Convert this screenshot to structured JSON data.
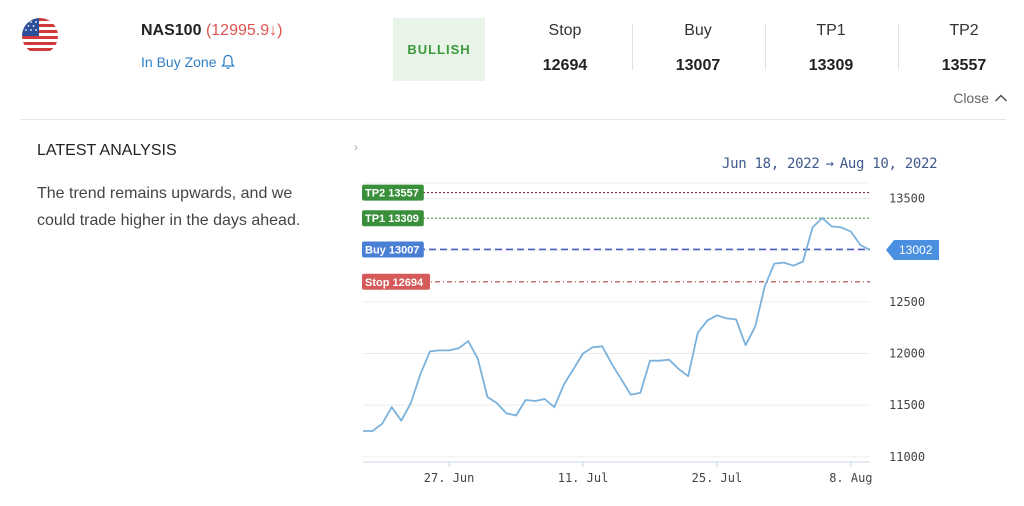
{
  "header": {
    "flag_icon": "us-flag-icon",
    "symbol": "NAS100",
    "price_open": "(",
    "price": "12995.9",
    "price_arrow": "↓",
    "price_close": ")",
    "zone": "In Buy Zone",
    "bias": "BULLISH",
    "levels": [
      {
        "label": "Stop",
        "value": "12694"
      },
      {
        "label": "Buy",
        "value": "13007"
      },
      {
        "label": "TP1",
        "value": "13309"
      },
      {
        "label": "TP2",
        "value": "13557"
      }
    ],
    "close_label": "Close"
  },
  "analysis": {
    "title": "LATEST ANALYSIS",
    "text": "The trend remains upwards, and we could trade higher in the days ahead."
  },
  "date_range": {
    "from": "Jun 18, 2022",
    "arrow": "→",
    "to": "Aug 10, 2022"
  },
  "colors": {
    "tp2": "#3a8f3a",
    "tp1": "#3a8f3a",
    "buy": "#4a7fd6",
    "stop": "#d65a5a",
    "tp2_line": "#8a2a5a",
    "tp1_line": "#4a9a4a",
    "buy_line": "#4a5fbf",
    "stop_line": "#b04040",
    "price_line": "#7ab2dd",
    "current_badge": "#4a8fe0"
  },
  "chart_data": {
    "type": "line",
    "x_start": "2022-06-18",
    "x_end": "2022-08-10",
    "x_ticks": [
      {
        "date": "2022-06-27",
        "label": "27. Jun"
      },
      {
        "date": "2022-07-11",
        "label": "11. Jul"
      },
      {
        "date": "2022-07-25",
        "label": "25. Jul"
      },
      {
        "date": "2022-08-08",
        "label": "8. Aug"
      }
    ],
    "y_ticks": [
      11000,
      11500,
      12000,
      12500,
      13000,
      13500
    ],
    "ylim": [
      10950,
      13650
    ],
    "levels": [
      {
        "name": "TP2",
        "label": "TP2 13557",
        "value": 13557
      },
      {
        "name": "TP1",
        "label": "TP1 13309",
        "value": 13309
      },
      {
        "name": "Buy",
        "label": "Buy 13007",
        "value": 13007
      },
      {
        "name": "Stop",
        "label": "Stop 12694",
        "value": 12694
      }
    ],
    "current": {
      "label": "13002",
      "value": 13002
    },
    "series": [
      {
        "values": [
          [
            "2022-06-18",
            11250
          ],
          [
            "2022-06-19",
            11250
          ],
          [
            "2022-06-20",
            11320
          ],
          [
            "2022-06-21",
            11480
          ],
          [
            "2022-06-22",
            11350
          ],
          [
            "2022-06-23",
            11520
          ],
          [
            "2022-06-24",
            11800
          ],
          [
            "2022-06-25",
            12020
          ],
          [
            "2022-06-26",
            12030
          ],
          [
            "2022-06-27",
            12030
          ],
          [
            "2022-06-28",
            12050
          ],
          [
            "2022-06-29",
            12120
          ],
          [
            "2022-06-30",
            11950
          ],
          [
            "2022-07-01",
            11580
          ],
          [
            "2022-07-02",
            11520
          ],
          [
            "2022-07-03",
            11420
          ],
          [
            "2022-07-04",
            11400
          ],
          [
            "2022-07-05",
            11550
          ],
          [
            "2022-07-06",
            11540
          ],
          [
            "2022-07-07",
            11560
          ],
          [
            "2022-07-08",
            11480
          ],
          [
            "2022-07-09",
            11700
          ],
          [
            "2022-07-10",
            11850
          ],
          [
            "2022-07-11",
            12000
          ],
          [
            "2022-07-12",
            12060
          ],
          [
            "2022-07-13",
            12070
          ],
          [
            "2022-07-14",
            11900
          ],
          [
            "2022-07-15",
            11750
          ],
          [
            "2022-07-16",
            11600
          ],
          [
            "2022-07-17",
            11620
          ],
          [
            "2022-07-18",
            11930
          ],
          [
            "2022-07-19",
            11930
          ],
          [
            "2022-07-20",
            11940
          ],
          [
            "2022-07-21",
            11850
          ],
          [
            "2022-07-22",
            11780
          ],
          [
            "2022-07-23",
            12200
          ],
          [
            "2022-07-24",
            12320
          ],
          [
            "2022-07-25",
            12370
          ],
          [
            "2022-07-26",
            12340
          ],
          [
            "2022-07-27",
            12330
          ],
          [
            "2022-07-28",
            12080
          ],
          [
            "2022-07-29",
            12260
          ],
          [
            "2022-07-30",
            12650
          ],
          [
            "2022-07-31",
            12870
          ],
          [
            "2022-08-01",
            12880
          ],
          [
            "2022-08-02",
            12850
          ],
          [
            "2022-08-03",
            12890
          ],
          [
            "2022-08-04",
            13220
          ],
          [
            "2022-08-05",
            13310
          ],
          [
            "2022-08-06",
            13230
          ],
          [
            "2022-08-07",
            13220
          ],
          [
            "2022-08-08",
            13180
          ],
          [
            "2022-08-09",
            13050
          ],
          [
            "2022-08-10",
            13002
          ]
        ]
      }
    ]
  }
}
